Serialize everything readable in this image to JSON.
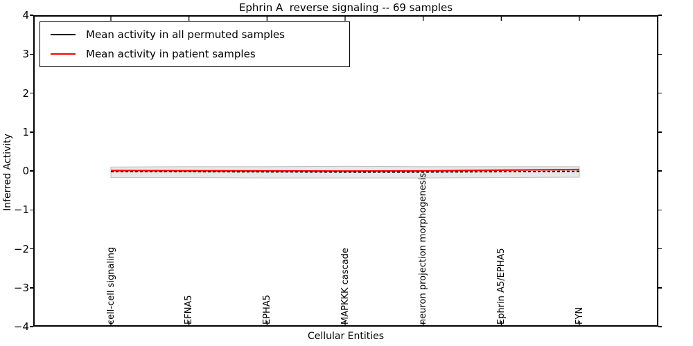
{
  "title": "Ephrin A  reverse signaling -- 69 samples",
  "axes": {
    "ylabel": "Inferred Activity",
    "xlabel": "Cellular Entities",
    "ytick_labels": [
      "4",
      "3",
      "2",
      "1",
      "0",
      "−1",
      "−2",
      "−3",
      "−4"
    ]
  },
  "legend": [
    {
      "label": "Mean activity in all permuted samples",
      "color": "#000000"
    },
    {
      "label": "Mean activity in patient samples",
      "color": "#ff0000"
    }
  ],
  "chart_data": {
    "type": "line",
    "title": "Ephrin A  reverse signaling -- 69 samples",
    "xlabel": "Cellular Entities",
    "ylabel": "Inferred Activity",
    "ylim": [
      -4,
      4
    ],
    "yticks": [
      4,
      3,
      2,
      1,
      0,
      -1,
      -2,
      -3,
      -4
    ],
    "grid": false,
    "legend_position": "upper left",
    "categories": [
      "cell-cell signaling",
      "EFNA5",
      "EPHA5",
      "MAPKKK cascade",
      "neuron projection morphogenesis",
      "Ephrin A5/EPHA5",
      "FYN"
    ],
    "series": [
      {
        "name": "Mean activity in all permuted samples",
        "color": "#000000",
        "style": "dashed",
        "values": [
          -0.02,
          -0.02,
          -0.025,
          -0.03,
          -0.03,
          -0.02,
          -0.01
        ]
      },
      {
        "name": "Mean activity in patient samples",
        "color": "#ff0000",
        "style": "solid",
        "values": [
          0.01,
          0.005,
          0.0,
          -0.005,
          0.0,
          0.02,
          0.035
        ]
      }
    ],
    "band": {
      "name": "permuted-samples std band",
      "fill": "#e8e8e8",
      "edge": "#bcbcbc",
      "upper": [
        0.1,
        0.11,
        0.11,
        0.12,
        0.11,
        0.11,
        0.11
      ],
      "lower": [
        -0.17,
        -0.17,
        -0.18,
        -0.18,
        -0.18,
        -0.17,
        -0.16
      ]
    }
  }
}
